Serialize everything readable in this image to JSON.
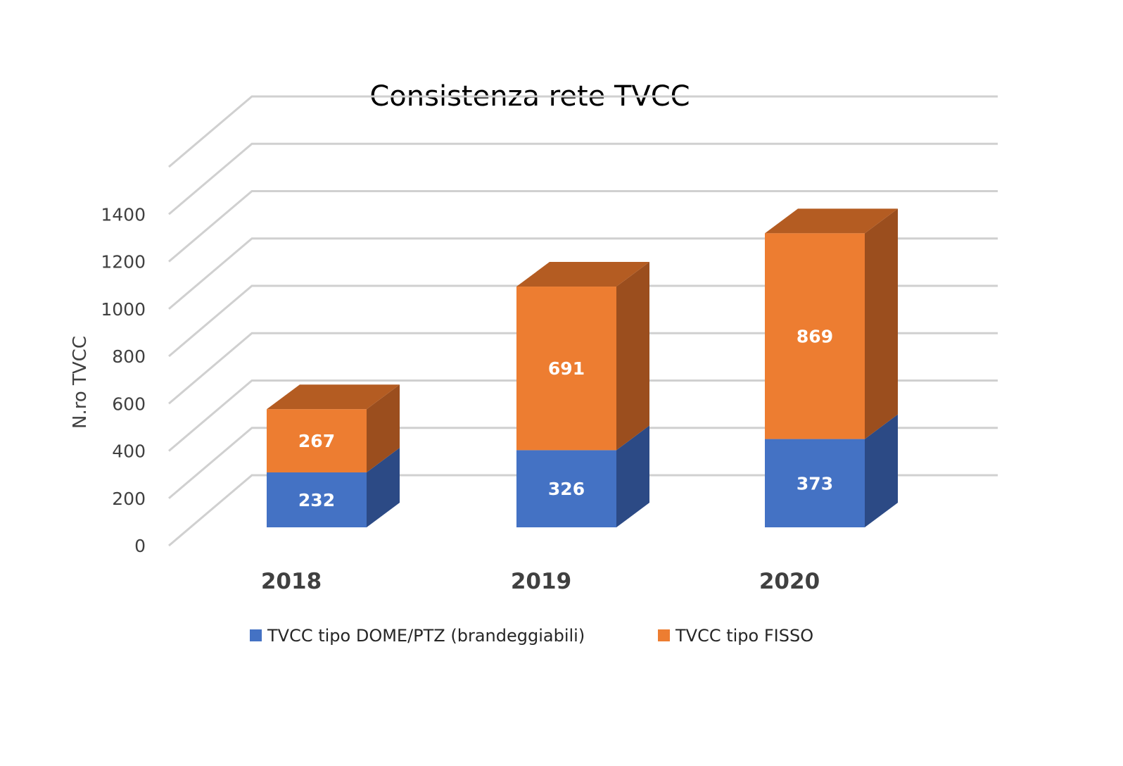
{
  "chart_data": {
    "type": "bar",
    "stacked": true,
    "three_d": true,
    "title": "Consistenza rete TVCC",
    "xlabel": "",
    "ylabel": "N.ro TVCC",
    "categories": [
      "2018",
      "2019",
      "2020"
    ],
    "series": [
      {
        "name": "TVCC  tipo DOME/PTZ (brandeggiabili)",
        "values": [
          232,
          326,
          373
        ],
        "color": "#4472C4",
        "side_color": "#2C4A85"
      },
      {
        "name": "TVCC tipo FISSO",
        "values": [
          267,
          691,
          869
        ],
        "color": "#ED7D31",
        "side_color": "#9B4E1E",
        "top_color": "#B45C22"
      }
    ],
    "ylim": [
      0,
      1600
    ],
    "yticks": [
      0,
      200,
      400,
      600,
      800,
      1000,
      1200,
      1400
    ],
    "grid": true,
    "legend_position": "bottom"
  }
}
